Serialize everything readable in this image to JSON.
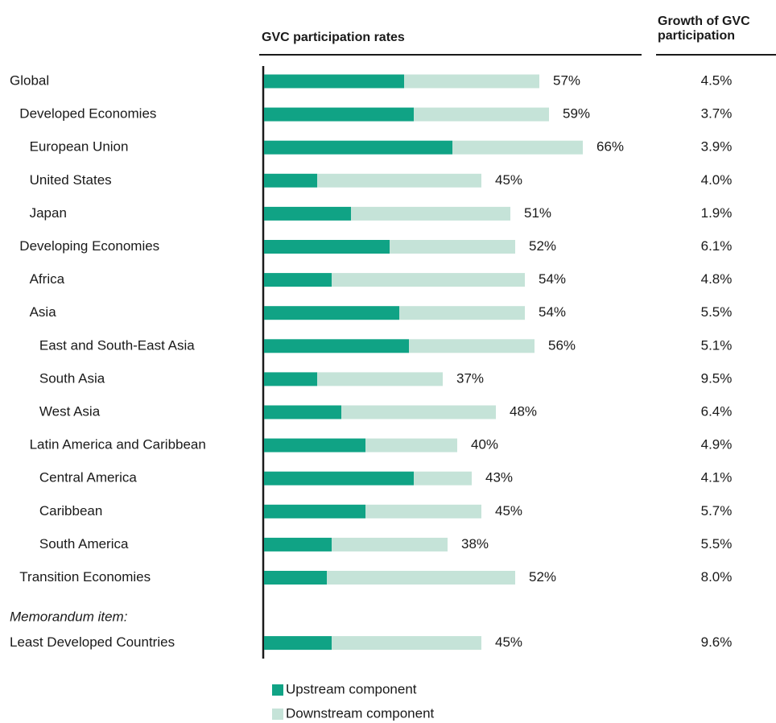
{
  "chart_data": {
    "type": "stacked-bar-horizontal",
    "title": "GVC participation rates",
    "growth_header": [
      "Growth of GVC",
      "participation"
    ],
    "memorandum": "Memorandum item:",
    "categories": [
      "Global",
      "Developed Economies",
      "European Union",
      "United States",
      "Japan",
      "Developing Economies",
      "Africa",
      "Asia",
      "East and South-East Asia",
      "South Asia",
      "West Asia",
      "Latin America and Caribbean",
      "Central America",
      "Caribbean",
      "South America",
      "Transition Economies",
      "Least Developed Countries"
    ],
    "series": [
      {
        "name": "Upstream component",
        "color": "#10a385",
        "values": [
          29,
          31,
          39,
          11,
          18,
          26,
          14,
          28,
          30,
          11,
          16,
          21,
          31,
          21,
          14,
          13,
          14
        ]
      },
      {
        "name": "Downstream component",
        "color": "#c5e3d8",
        "values": [
          28,
          28,
          27,
          34,
          33,
          26,
          40,
          26,
          26,
          26,
          32,
          19,
          12,
          24,
          24,
          39,
          31
        ]
      }
    ],
    "total_labels": [
      "57%",
      "59%",
      "66%",
      "45%",
      "51%",
      "52%",
      "54%",
      "54%",
      "56%",
      "37%",
      "48%",
      "40%",
      "43%",
      "45%",
      "38%",
      "52%",
      "45%"
    ],
    "growth": [
      "4.5%",
      "3.7%",
      "3.9%",
      "4.0%",
      "1.9%",
      "6.1%",
      "4.8%",
      "5.5%",
      "5.1%",
      "9.5%",
      "6.4%",
      "4.9%",
      "4.1%",
      "5.7%",
      "5.5%",
      "8.0%",
      "9.6%"
    ]
  }
}
